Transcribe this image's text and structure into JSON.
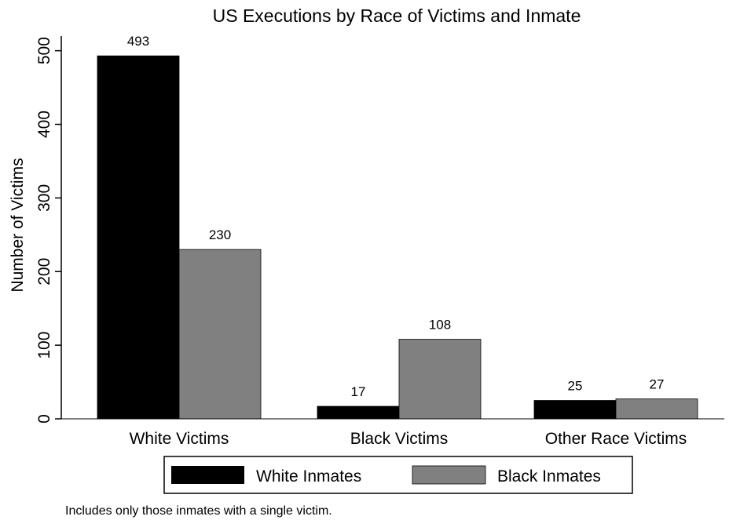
{
  "chart_data": {
    "type": "bar",
    "title": "US Executions by Race of Victims and Inmate",
    "ylabel": "Number of Victims",
    "xlabel": "",
    "categories": [
      "White Victims",
      "Black Victims",
      "Other Race Victims"
    ],
    "series": [
      {
        "name": "White Inmates",
        "values": [
          493,
          17,
          25
        ],
        "color": "#000000"
      },
      {
        "name": "Black Inmates",
        "values": [
          230,
          108,
          27
        ],
        "color": "#808080"
      }
    ],
    "ylim": [
      0,
      520
    ],
    "yticks": [
      0,
      100,
      200,
      300,
      400,
      500
    ],
    "data_labels": true,
    "grid": false,
    "legend_position": "bottom",
    "note": "Includes only those inmates with a single victim."
  }
}
